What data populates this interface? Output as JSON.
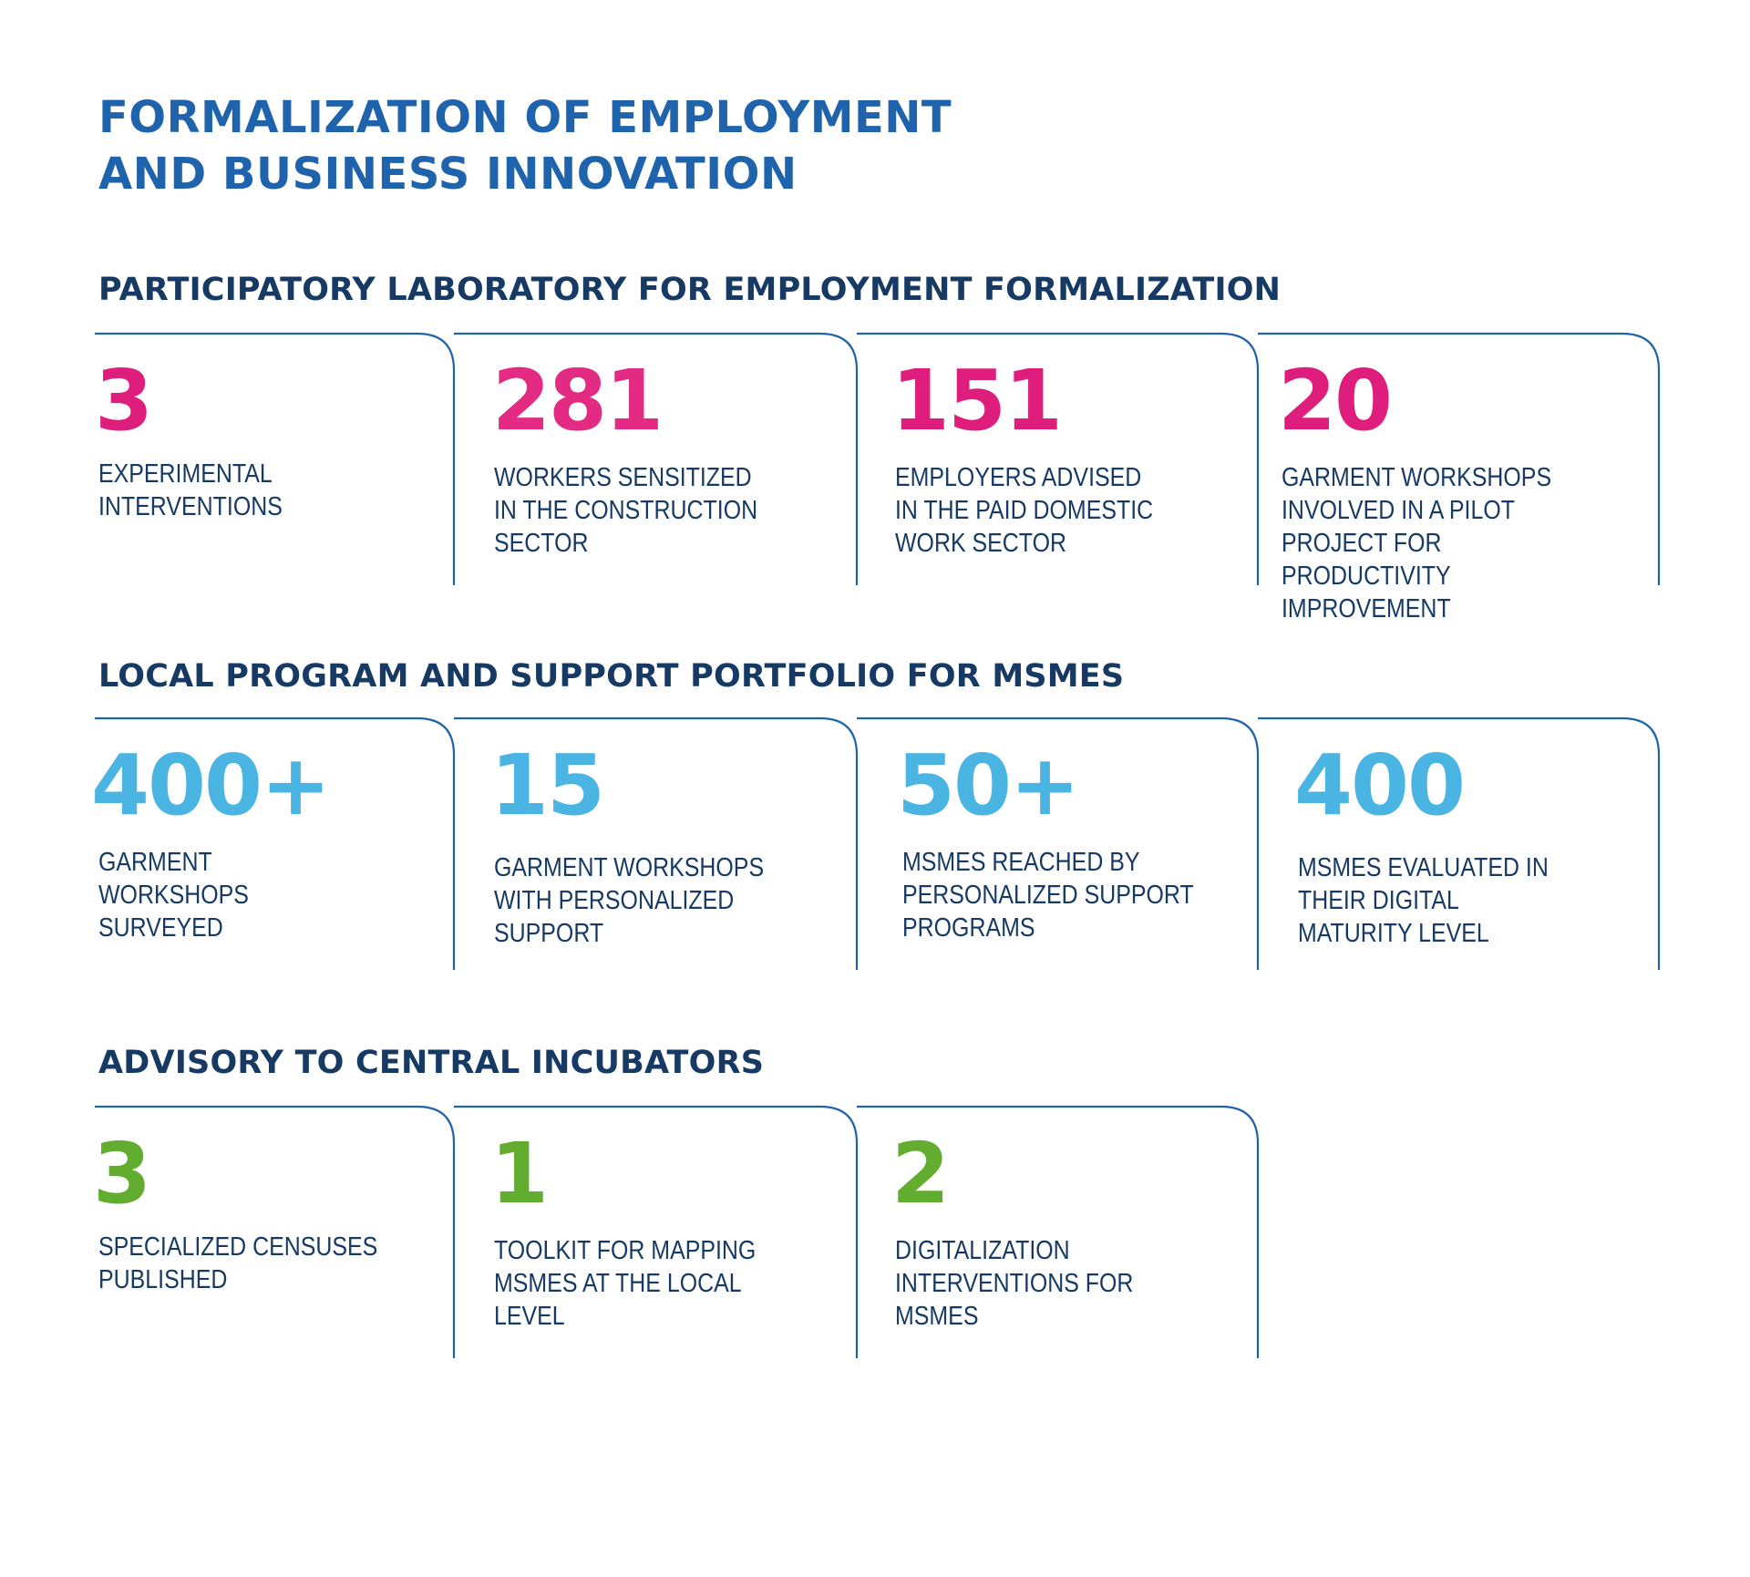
{
  "header": {
    "title_line1": "FORMALIZATION OF EMPLOYMENT",
    "title_line2": "AND BUSINESS INNOVATION"
  },
  "colors": {
    "title": "#1f63ac",
    "section_title": "#163a64",
    "frame_line": "#1f63ac",
    "pink": "#df1d7d",
    "blue": "#4ab5e3",
    "green": "#62ad2f"
  },
  "sections": [
    {
      "title": "PARTICIPATORY LABORATORY FOR EMPLOYMENT FORMALIZATION",
      "accent": "pink",
      "stats": [
        {
          "value": "3",
          "label": "EXPERIMENTAL\nINTERVENTIONS"
        },
        {
          "value": "281",
          "label": "WORKERS SENSITIZED\nIN THE CONSTRUCTION\nSECTOR"
        },
        {
          "value": "151",
          "label": "EMPLOYERS ADVISED\nIN THE PAID DOMESTIC\nWORK SECTOR"
        },
        {
          "value": "20",
          "label": "GARMENT WORKSHOPS\nINVOLVED IN A PILOT\nPROJECT FOR PRODUCTIVITY\nIMPROVEMENT"
        }
      ]
    },
    {
      "title": "LOCAL PROGRAM AND SUPPORT PORTFOLIO FOR MSMES",
      "accent": "blue",
      "stats": [
        {
          "value": "400+",
          "label": "GARMENT\nWORKSHOPS\nSURVEYED"
        },
        {
          "value": "15",
          "label": "GARMENT WORKSHOPS\nWITH PERSONALIZED\nSUPPORT"
        },
        {
          "value": "50+",
          "label": "MSMES REACHED BY\nPERSONALIZED SUPPORT\nPROGRAMS"
        },
        {
          "value": "400",
          "label": "MSMES EVALUATED IN\nTHEIR DIGITAL\nMATURITY LEVEL"
        }
      ]
    },
    {
      "title": "ADVISORY TO CENTRAL INCUBATORS",
      "accent": "green",
      "stats": [
        {
          "value": "3",
          "label": "SPECIALIZED CENSUSES\nPUBLISHED"
        },
        {
          "value": "1",
          "label": "TOOLKIT FOR MAPPING\nMSMES AT THE LOCAL\nLEVEL"
        },
        {
          "value": "2",
          "label": "DIGITALIZATION\nINTERVENTIONS FOR\nMSMES"
        }
      ]
    }
  ]
}
